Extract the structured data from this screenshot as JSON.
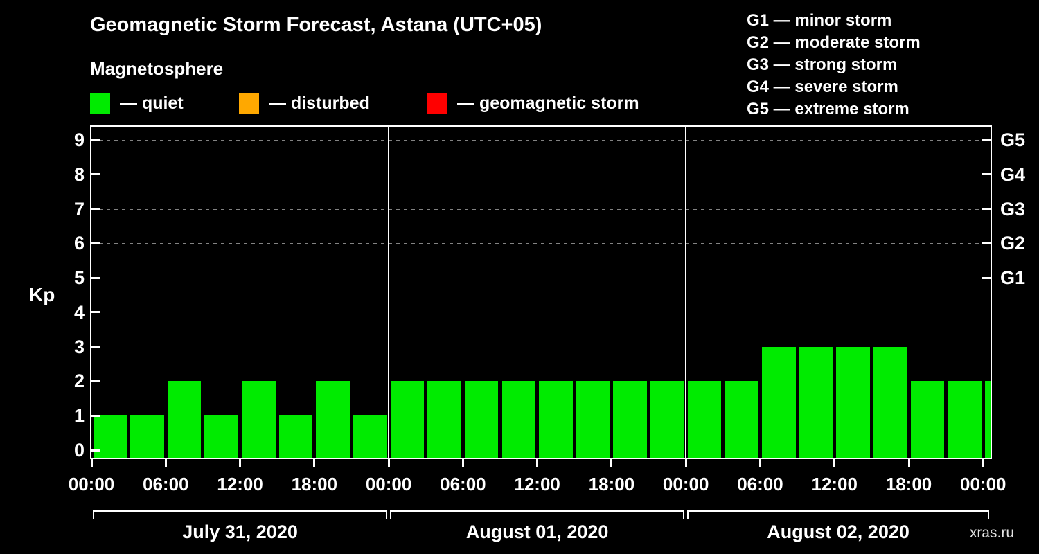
{
  "title": "Geomagnetic Storm Forecast, Astana (UTC+05)",
  "subtitle": "Magnetosphere",
  "legend": {
    "quiet_label": "— quiet",
    "disturbed_label": "— disturbed",
    "storm_label": "— geomagnetic storm"
  },
  "g_legend": [
    "G1 — minor storm",
    "G2 — moderate storm",
    "G3 — strong storm",
    "G4 — severe storm",
    "G5 — extreme storm"
  ],
  "watermark": "xras.ru",
  "colors": {
    "quiet": "#00eb00",
    "disturbed": "#ffa800",
    "storm": "#ff0000",
    "axis": "#ffffff",
    "grid": "#9a9a9a",
    "background": "#000000"
  },
  "chart_data": {
    "type": "bar",
    "title": "Geomagnetic Storm Forecast, Astana (UTC+05)",
    "ylabel": "Kp",
    "ylim": [
      0,
      9.5
    ],
    "yticks": [
      0,
      1,
      2,
      3,
      4,
      5,
      6,
      7,
      8,
      9
    ],
    "right_axis_labels": [
      {
        "value": 9,
        "label": "G5"
      },
      {
        "value": 8,
        "label": "G4"
      },
      {
        "value": 7,
        "label": "G3"
      },
      {
        "value": 6,
        "label": "G2"
      },
      {
        "value": 5,
        "label": "G1"
      }
    ],
    "grid_levels": [
      5,
      6,
      7,
      8,
      9
    ],
    "bar_interval_hours": 3,
    "x_tick_interval_hours": 6,
    "x_tick_labels": [
      "00:00",
      "06:00",
      "12:00",
      "18:00",
      "00:00",
      "06:00",
      "12:00",
      "18:00",
      "00:00",
      "06:00",
      "12:00",
      "18:00",
      "00:00"
    ],
    "days": [
      {
        "date": "July 31, 2020",
        "values": [
          1,
          1,
          2,
          1,
          2,
          1,
          2,
          1
        ]
      },
      {
        "date": "August 01, 2020",
        "values": [
          2,
          2,
          2,
          2,
          2,
          2,
          2,
          2
        ]
      },
      {
        "date": "August 02, 2020",
        "values": [
          2,
          2,
          3,
          3,
          3,
          3,
          2,
          2
        ]
      }
    ],
    "partial_next_value": 2,
    "color_rule": {
      "quiet_max": 4,
      "disturbed_max": 5
    },
    "legend_position": "top",
    "grid": "dashed horizontal at G levels"
  }
}
